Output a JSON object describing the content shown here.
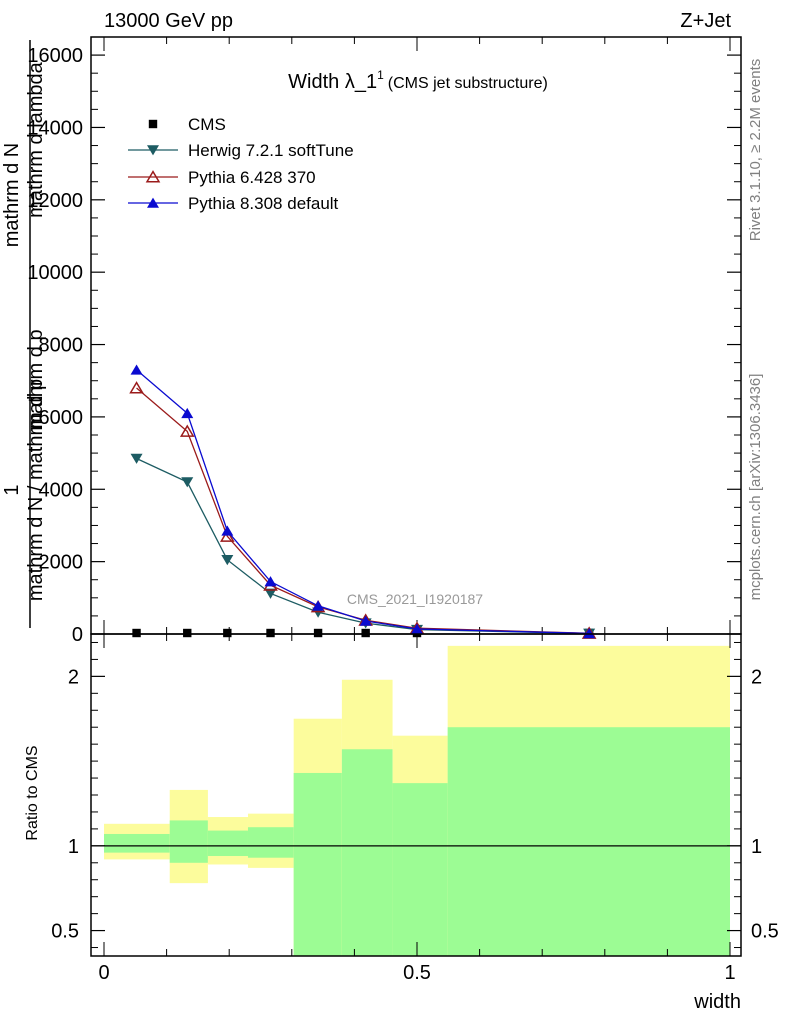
{
  "header": {
    "left": "13000 GeV pp",
    "right": "Z+Jet"
  },
  "side_labels": {
    "rivet": "Rivet 3.1.10, ≥ 2.2M events",
    "mcplots": "mcplots.cern.ch [arXiv:1306.3436]"
  },
  "watermark": "CMS_2021_I1920187",
  "chart_data": [
    {
      "type": "line",
      "title_main": "Width λ_1",
      "title_sup": "1",
      "title_sub": "(CMS jet substructure)",
      "ylabel_parts": [
        "1",
        "mathrm d N / mathrm d p",
        "mathrm d N",
        "mathrm d p",
        "mathrm d lambda"
      ],
      "xlim": [
        0,
        1
      ],
      "ylim": [
        0,
        16500
      ],
      "ytick_labels": [
        "0",
        "2000",
        "4000",
        "6000",
        "8000",
        "10000",
        "12000",
        "14000",
        "16000"
      ],
      "x": [
        0.052,
        0.133,
        0.197,
        0.266,
        0.342,
        0.418,
        0.5,
        0.775
      ],
      "series": [
        {
          "name": "CMS",
          "color": "#000000",
          "marker": "square",
          "values": [
            0,
            0,
            0,
            0,
            0,
            0,
            0,
            0
          ]
        },
        {
          "name": "Herwig 7.2.1 softTune",
          "color": "#1d5c63",
          "marker": "triangle-down",
          "values": [
            4850,
            4200,
            2050,
            1120,
            600,
            300,
            120,
            15
          ]
        },
        {
          "name": "Pythia 6.428 370",
          "color": "#9b1b1b",
          "marker": "triangle-up-open",
          "values": [
            6800,
            5600,
            2700,
            1350,
            750,
            380,
            160,
            20
          ]
        },
        {
          "name": "Pythia 8.308 default",
          "color": "#0a0ad0",
          "marker": "triangle-up",
          "values": [
            7300,
            6100,
            2850,
            1450,
            780,
            360,
            140,
            15
          ]
        }
      ]
    },
    {
      "type": "area",
      "ylabel": "Ratio to CMS",
      "xlabel": "width",
      "xlim": [
        0,
        1
      ],
      "ylim": [
        0.35,
        2.25
      ],
      "xtick_labels": [
        "0",
        "0.5",
        "1"
      ],
      "ytick_labels": [
        "0.5",
        "1",
        "2"
      ],
      "bins": [
        {
          "x": [
            0.0,
            0.105
          ],
          "green": [
            0.96,
            1.07
          ],
          "yellow": [
            0.92,
            1.13
          ]
        },
        {
          "x": [
            0.105,
            0.166
          ],
          "green": [
            0.9,
            1.15
          ],
          "yellow": [
            0.78,
            1.33
          ]
        },
        {
          "x": [
            0.166,
            0.23
          ],
          "green": [
            0.94,
            1.09
          ],
          "yellow": [
            0.89,
            1.17
          ]
        },
        {
          "x": [
            0.23,
            0.303
          ],
          "green": [
            0.93,
            1.11
          ],
          "yellow": [
            0.87,
            1.19
          ]
        },
        {
          "x": [
            0.303,
            0.38
          ],
          "green": [
            0.35,
            1.43
          ],
          "yellow": [
            0.35,
            1.75
          ]
        },
        {
          "x": [
            0.38,
            0.461
          ],
          "green": [
            0.35,
            1.57
          ],
          "yellow": [
            0.35,
            1.98
          ]
        },
        {
          "x": [
            0.461,
            0.549
          ],
          "green": [
            0.35,
            1.37
          ],
          "yellow": [
            0.35,
            1.65
          ]
        },
        {
          "x": [
            0.549,
            1.0
          ],
          "green": [
            0.35,
            1.7
          ],
          "yellow": [
            0.35,
            2.18
          ]
        }
      ],
      "reference_line": 1
    }
  ],
  "colors": {
    "green_band": "#9cfc94",
    "yellow_band": "#fcfc9c"
  }
}
